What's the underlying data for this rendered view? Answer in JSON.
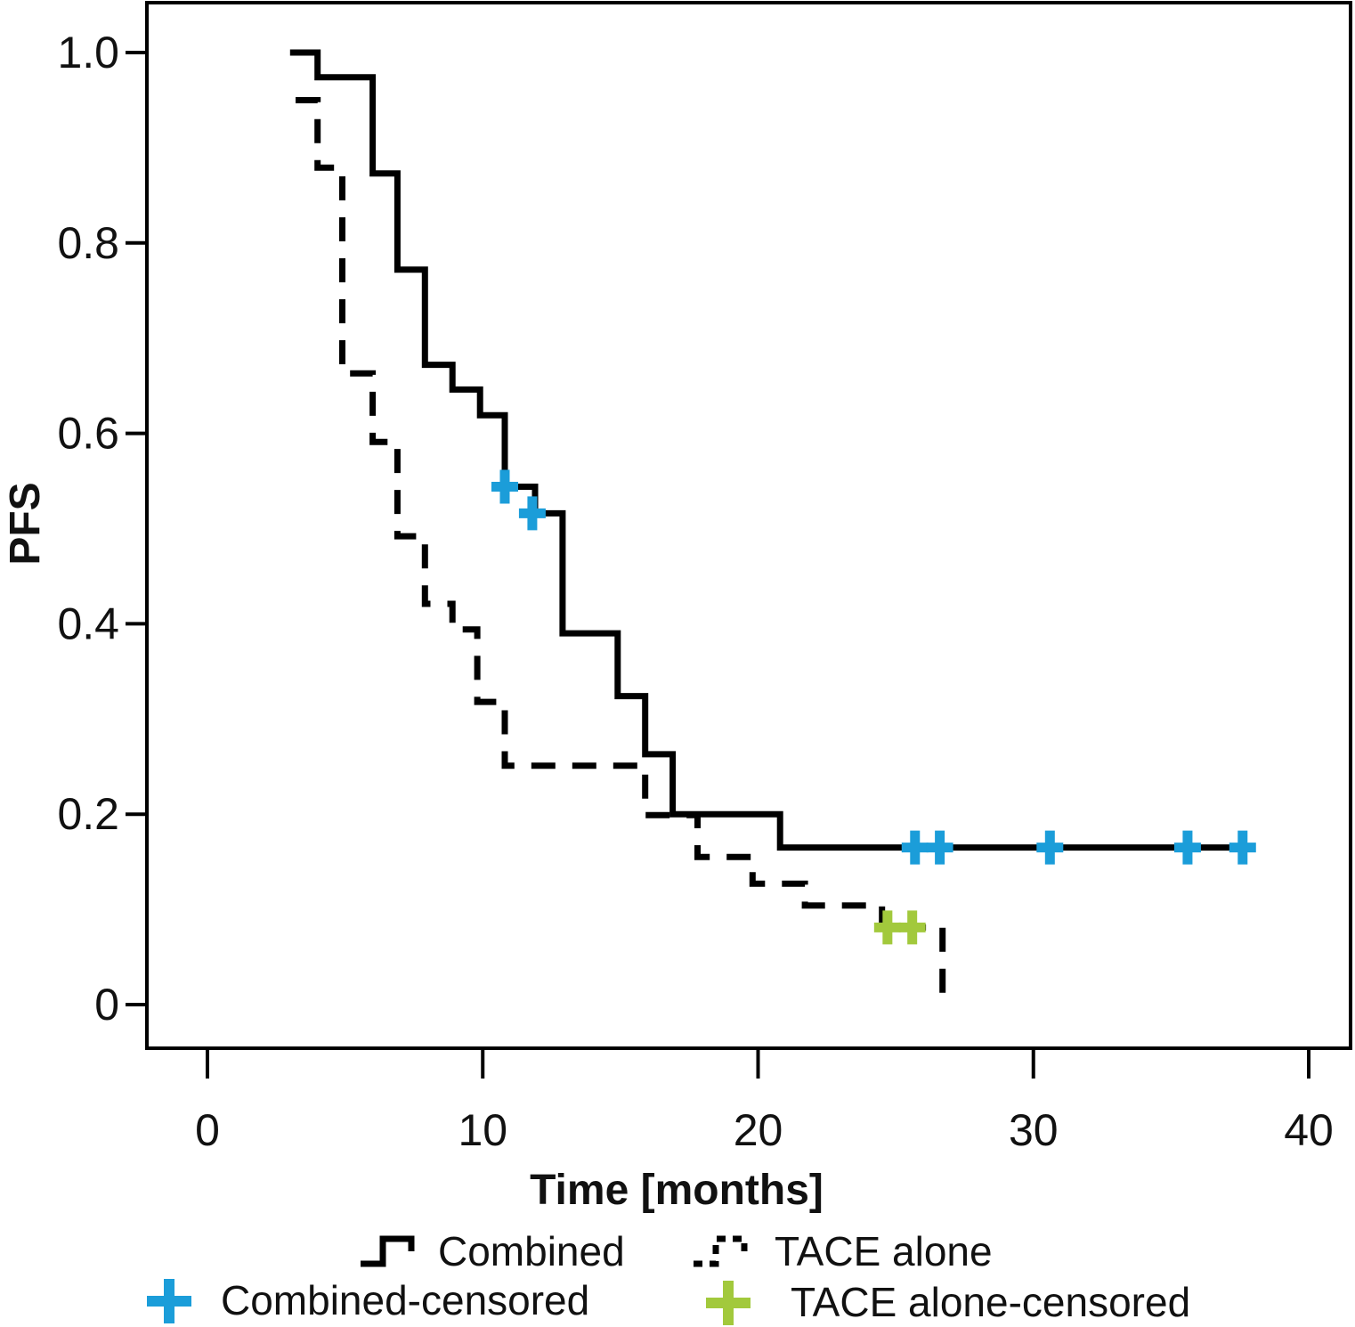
{
  "chart_data": {
    "type": "line",
    "subtype": "kaplan-meier-step",
    "title": "",
    "xlabel": "Time [months]",
    "ylabel": "PFS",
    "xlim": [
      -2.2,
      41.5
    ],
    "ylim": [
      -0.05,
      1.05
    ],
    "grid": false,
    "legend_position": "bottom",
    "x_ticks": [
      {
        "value": 0,
        "label": "0"
      },
      {
        "value": 10,
        "label": "10"
      },
      {
        "value": 20,
        "label": "20"
      },
      {
        "value": 30,
        "label": "30"
      },
      {
        "value": 40,
        "label": "40"
      }
    ],
    "y_ticks": [
      {
        "value": 1.0,
        "label": "1.0"
      },
      {
        "value": 0.8,
        "label": "0.8"
      },
      {
        "value": 0.6,
        "label": "0.6"
      },
      {
        "value": 0.4,
        "label": "0.4"
      },
      {
        "value": 0.2,
        "label": "0.2"
      },
      {
        "value": 0.0,
        "label": "0"
      }
    ],
    "series": [
      {
        "name": "Combined",
        "line_style": "solid",
        "color": "#000000",
        "censor_color": "#1b9dd9",
        "points": [
          [
            3.0,
            1.0
          ],
          [
            4.0,
            1.0
          ],
          [
            4.0,
            0.974
          ],
          [
            6.0,
            0.974
          ],
          [
            6.0,
            0.873
          ],
          [
            6.9,
            0.873
          ],
          [
            6.9,
            0.772
          ],
          [
            7.9,
            0.772
          ],
          [
            7.9,
            0.672
          ],
          [
            8.9,
            0.672
          ],
          [
            8.9,
            0.646
          ],
          [
            9.9,
            0.646
          ],
          [
            9.9,
            0.619
          ],
          [
            10.8,
            0.619
          ],
          [
            10.8,
            0.544
          ],
          [
            11.9,
            0.544
          ],
          [
            11.9,
            0.516
          ],
          [
            12.9,
            0.516
          ],
          [
            12.9,
            0.39
          ],
          [
            14.9,
            0.39
          ],
          [
            14.9,
            0.324
          ],
          [
            15.9,
            0.324
          ],
          [
            15.9,
            0.263
          ],
          [
            16.9,
            0.263
          ],
          [
            16.9,
            0.2
          ],
          [
            20.8,
            0.2
          ],
          [
            20.8,
            0.165
          ],
          [
            37.8,
            0.165
          ]
        ],
        "censored_points": [
          [
            10.8,
            0.544
          ],
          [
            11.8,
            0.516
          ],
          [
            25.7,
            0.165
          ],
          [
            26.6,
            0.165
          ],
          [
            30.6,
            0.165
          ],
          [
            35.6,
            0.165
          ],
          [
            37.6,
            0.165
          ]
        ]
      },
      {
        "name": "TACE alone",
        "line_style": "dashed",
        "color": "#000000",
        "censor_color": "#a2c93c",
        "points": [
          [
            3.2,
            0.95
          ],
          [
            4.0,
            0.95
          ],
          [
            4.0,
            0.879
          ],
          [
            4.9,
            0.879
          ],
          [
            4.9,
            0.663
          ],
          [
            6.0,
            0.663
          ],
          [
            6.0,
            0.591
          ],
          [
            6.9,
            0.591
          ],
          [
            6.9,
            0.492
          ],
          [
            7.9,
            0.492
          ],
          [
            7.9,
            0.421
          ],
          [
            8.9,
            0.421
          ],
          [
            8.9,
            0.394
          ],
          [
            9.8,
            0.394
          ],
          [
            9.8,
            0.318
          ],
          [
            10.8,
            0.318
          ],
          [
            10.8,
            0.251
          ],
          [
            15.9,
            0.251
          ],
          [
            15.9,
            0.199
          ],
          [
            17.8,
            0.199
          ],
          [
            17.8,
            0.155
          ],
          [
            19.8,
            0.155
          ],
          [
            19.8,
            0.127
          ],
          [
            21.7,
            0.127
          ],
          [
            21.7,
            0.104
          ],
          [
            24.5,
            0.104
          ],
          [
            24.5,
            0.081
          ],
          [
            26.7,
            0.081
          ],
          [
            26.7,
            0.008
          ]
        ],
        "censored_points": [
          [
            24.7,
            0.081
          ],
          [
            25.6,
            0.081
          ]
        ]
      }
    ],
    "legend": [
      {
        "label": "Combined",
        "marker": "solid-step-line",
        "color": "#000000"
      },
      {
        "label": "TACE alone",
        "marker": "dashed-step-line",
        "color": "#000000"
      },
      {
        "label": "Combined-censored",
        "marker": "plus",
        "color": "#1b9dd9"
      },
      {
        "label": "TACE alone-censored",
        "marker": "plus",
        "color": "#a2c93c"
      }
    ]
  }
}
